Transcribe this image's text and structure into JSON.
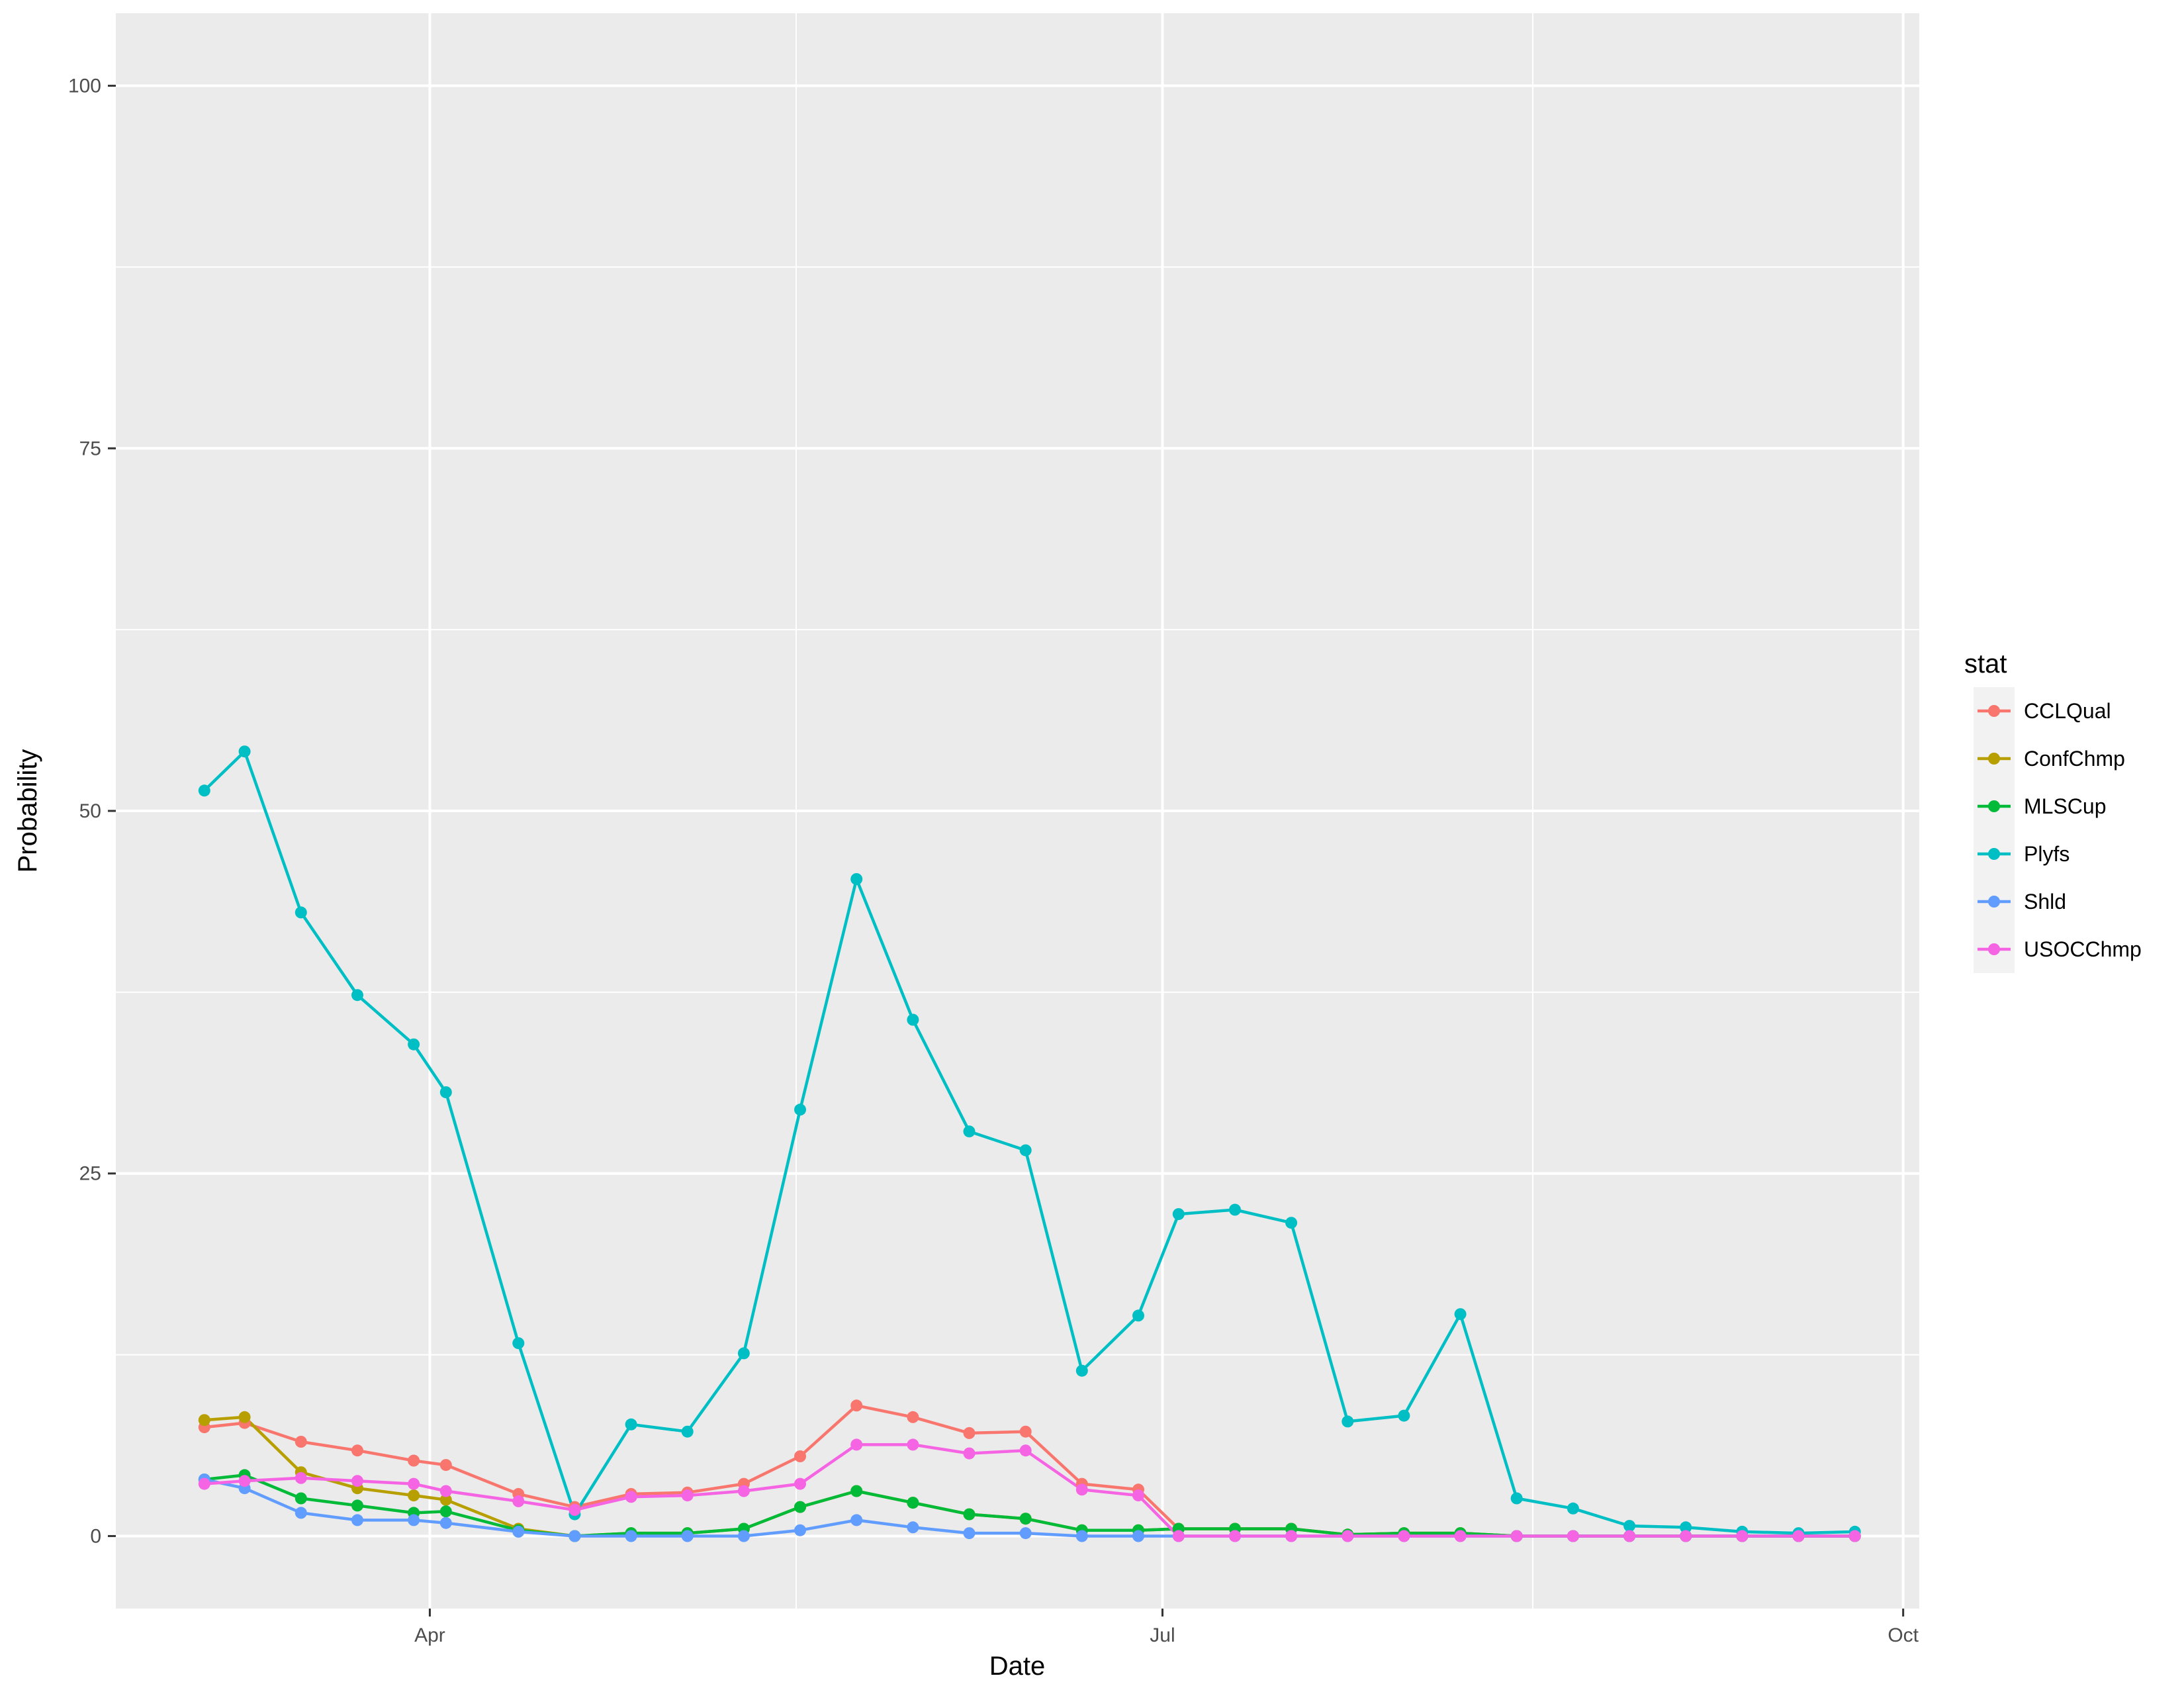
{
  "chart_data": {
    "type": "line",
    "xlabel": "Date",
    "ylabel": "Probability",
    "ylim": [
      -5,
      105
    ],
    "xlim": [
      "2017-02-21",
      "2017-10-03"
    ],
    "x_ticks": [
      {
        "date": "2017-04-01",
        "label": "Apr"
      },
      {
        "date": "2017-07-01",
        "label": "Jul"
      },
      {
        "date": "2017-10-01",
        "label": "Oct"
      }
    ],
    "y_ticks": [
      0,
      25,
      50,
      75,
      100
    ],
    "grid": true,
    "legend": {
      "title": "stat",
      "position": "right"
    },
    "x": [
      "2017-03-04",
      "2017-03-09",
      "2017-03-16",
      "2017-03-23",
      "2017-03-30",
      "2017-04-03",
      "2017-04-12",
      "2017-04-19",
      "2017-04-26",
      "2017-05-03",
      "2017-05-10",
      "2017-05-17",
      "2017-05-24",
      "2017-05-31",
      "2017-06-07",
      "2017-06-14",
      "2017-06-21",
      "2017-06-28",
      "2017-07-03",
      "2017-07-10",
      "2017-07-17",
      "2017-07-24",
      "2017-07-31",
      "2017-08-07",
      "2017-08-14",
      "2017-08-21",
      "2017-08-28",
      "2017-09-04",
      "2017-09-11",
      "2017-09-18",
      "2017-09-25"
    ],
    "series": [
      {
        "name": "CCLQual",
        "color": "#F8766D",
        "values": [
          7.5,
          7.8,
          6.5,
          5.9,
          5.2,
          4.9,
          2.9,
          2.0,
          2.9,
          3.0,
          3.6,
          5.5,
          9.0,
          8.2,
          7.1,
          7.2,
          3.6,
          3.2,
          0.5,
          0.5,
          0.5,
          0.1,
          0.2,
          0.2,
          0,
          0,
          0,
          0,
          0,
          0,
          0
        ]
      },
      {
        "name": "ConfChmp",
        "color": "#B79F00",
        "values": [
          8.0,
          8.2,
          4.4,
          3.3,
          2.8,
          2.5,
          0.5,
          0,
          0.2,
          0.2,
          0.5,
          2.0,
          3.1,
          2.3,
          1.5,
          1.2,
          0.4,
          0.4,
          0.5,
          0.5,
          0.5,
          0.1,
          0.2,
          0.2,
          0,
          0,
          0,
          0,
          0,
          0,
          0
        ]
      },
      {
        "name": "MLSCup",
        "color": "#00BA38",
        "values": [
          3.9,
          4.2,
          2.6,
          2.1,
          1.6,
          1.7,
          0.4,
          0,
          0.2,
          0.2,
          0.5,
          2.0,
          3.1,
          2.3,
          1.5,
          1.2,
          0.4,
          0.4,
          0.5,
          0.5,
          0.5,
          0.1,
          0.2,
          0.2,
          0,
          0,
          0,
          0,
          0,
          0,
          0
        ]
      },
      {
        "name": "Plyfs",
        "color": "#00BFC4",
        "values": [
          51.4,
          54.1,
          43.0,
          37.3,
          33.9,
          30.6,
          13.3,
          1.5,
          7.7,
          7.2,
          12.6,
          29.4,
          45.3,
          35.6,
          27.9,
          26.6,
          11.4,
          15.2,
          22.2,
          22.5,
          21.6,
          7.9,
          8.3,
          15.3,
          2.6,
          1.9,
          0.7,
          0.6,
          0.3,
          0.2,
          0.3
        ]
      },
      {
        "name": "Shld",
        "color": "#619CFF",
        "values": [
          3.9,
          3.3,
          1.6,
          1.1,
          1.1,
          0.9,
          0.3,
          0,
          0,
          0,
          0,
          0.4,
          1.1,
          0.6,
          0.2,
          0.2,
          0,
          0,
          0,
          0,
          0,
          0,
          0,
          0,
          0,
          0,
          0,
          0,
          0,
          0,
          0
        ]
      },
      {
        "name": "USOCChmp",
        "color": "#F564E3",
        "values": [
          3.6,
          3.8,
          4.0,
          3.8,
          3.6,
          3.1,
          2.4,
          1.8,
          2.7,
          2.8,
          3.1,
          3.6,
          6.3,
          6.3,
          5.7,
          5.9,
          3.2,
          2.8,
          0,
          0,
          0,
          0,
          0,
          0,
          0,
          0,
          0,
          0,
          0,
          0,
          0
        ]
      }
    ]
  }
}
